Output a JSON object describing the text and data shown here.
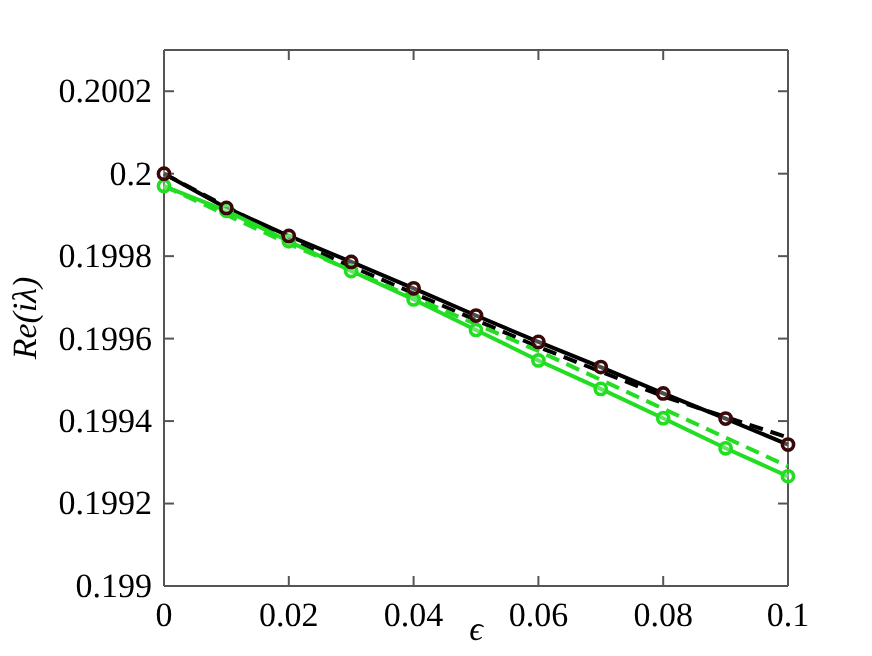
{
  "chart_data": {
    "type": "line",
    "xlabel": "ϵ",
    "ylabel": "Re(iλ)",
    "xlim": [
      0,
      0.1
    ],
    "ylim": [
      0.199,
      0.2003
    ],
    "xticks": [
      0,
      0.02,
      0.04,
      0.06,
      0.08,
      0.1
    ],
    "yticks": [
      0.199,
      0.1992,
      0.1994,
      0.1996,
      0.1998,
      {
        "value": 0.2,
        "label": "0.2"
      },
      0.2002
    ],
    "grid": false,
    "series": [
      {
        "color": "#000000",
        "marker": "circle",
        "line_style": "solid",
        "x": [
          0,
          0.01,
          0.02,
          0.03,
          0.04,
          0.05,
          0.06,
          0.07,
          0.08,
          0.09,
          0.1
        ],
        "values": [
          0.2,
          0.199917,
          0.199849,
          0.199786,
          0.199722,
          0.199656,
          0.199592,
          0.199531,
          0.199467,
          0.199406,
          0.199343
        ]
      },
      {
        "color": "#000000",
        "marker": "none",
        "line_style": "dashed",
        "x": [
          0,
          0.02,
          0.04,
          0.06,
          0.08,
          0.1
        ],
        "values": [
          0.2,
          0.19984,
          0.19971,
          0.19958,
          0.19946,
          0.19936
        ]
      },
      {
        "color": "#22dd22",
        "marker": "circle",
        "line_style": "solid",
        "x": [
          0,
          0.01,
          0.02,
          0.03,
          0.04,
          0.05,
          0.06,
          0.07,
          0.08,
          0.09,
          0.1
        ],
        "values": [
          0.19997,
          0.19991,
          0.199836,
          0.199764,
          0.199695,
          0.199621,
          0.199547,
          0.199478,
          0.199407,
          0.199334,
          0.199266
        ]
      },
      {
        "color": "#22dd22",
        "marker": "none",
        "line_style": "dashed",
        "x": [
          0,
          0.02,
          0.04,
          0.06,
          0.08,
          0.1
        ],
        "values": [
          0.19997,
          0.19983,
          0.1997,
          0.19957,
          0.19943,
          0.19929
        ]
      }
    ]
  }
}
